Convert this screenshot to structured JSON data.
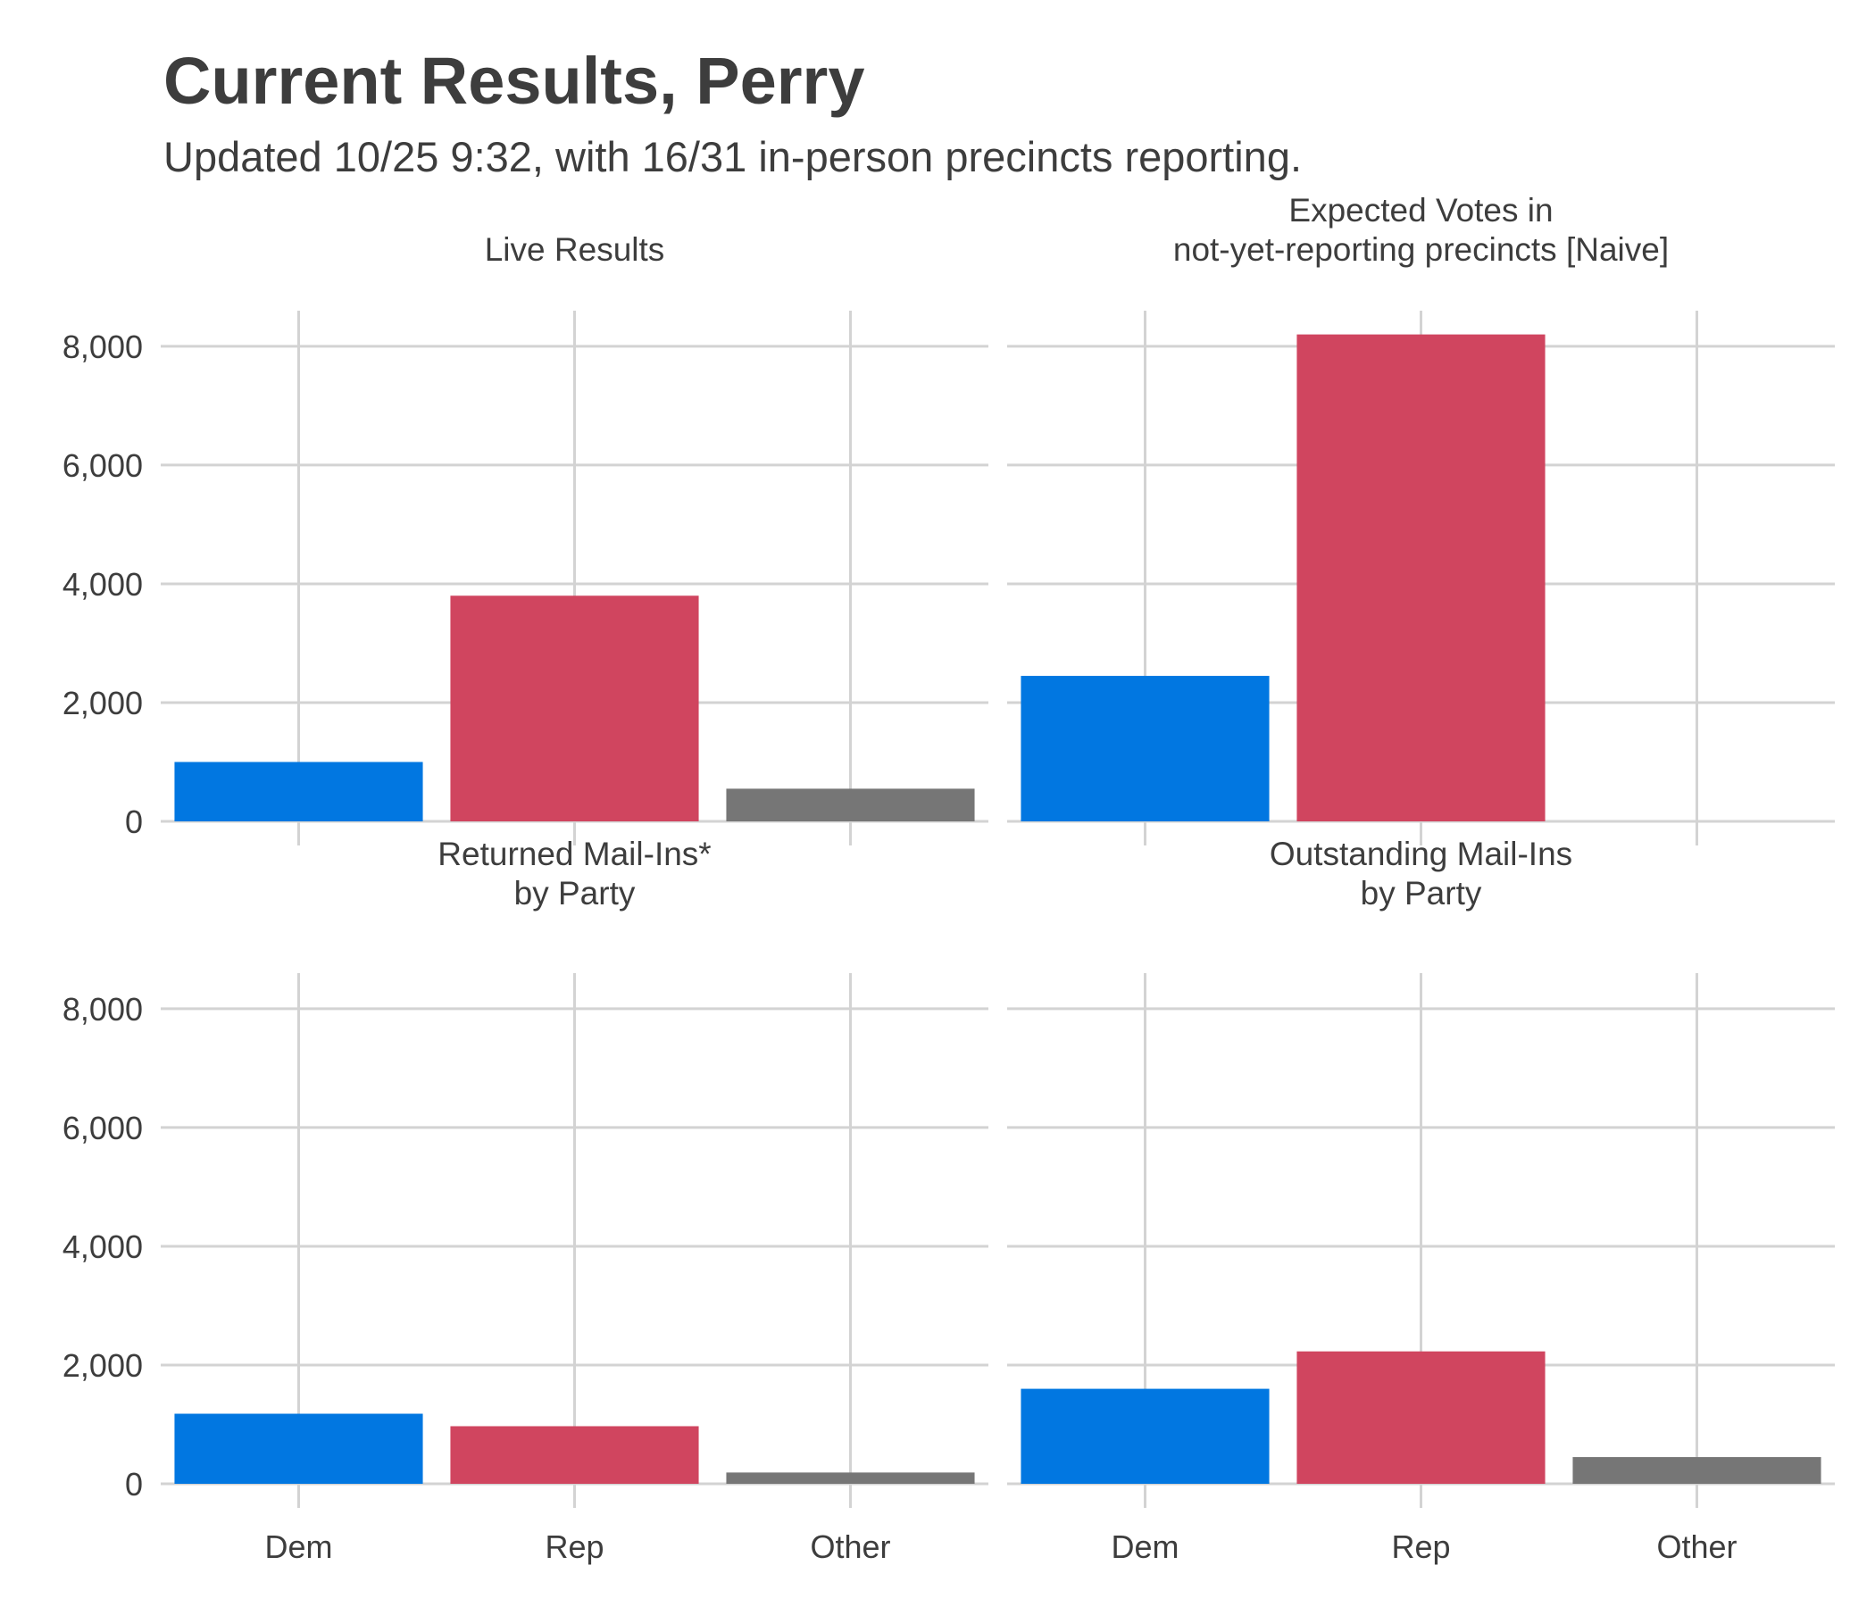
{
  "title": "Current Results, Perry",
  "subtitle": "Updated 10/25 9:32, with 16/31 in-person precincts reporting.",
  "colors": {
    "Dem": "#0177e1",
    "Rep": "#d0455f",
    "Other": "#767676"
  },
  "chart_data": {
    "type": "bar",
    "categories": [
      "Dem",
      "Rep",
      "Other"
    ],
    "ylim": [
      0,
      8600
    ],
    "yticks": [
      0,
      2000,
      4000,
      6000,
      8000
    ],
    "ytick_labels": [
      "0",
      "2,000",
      "4,000",
      "6,000",
      "8,000"
    ],
    "grid": true,
    "panels": [
      {
        "title_lines": [
          "Live Results"
        ],
        "values": [
          1000,
          3800,
          550
        ]
      },
      {
        "title_lines": [
          "Expected Votes in",
          "not-yet-reporting precincts [Naive]"
        ],
        "values": [
          2450,
          8200,
          0
        ]
      },
      {
        "title_lines": [
          "Returned Mail-Ins*",
          "by Party"
        ],
        "values": [
          1180,
          970,
          190
        ]
      },
      {
        "title_lines": [
          "Outstanding Mail-Ins",
          "by Party"
        ],
        "values": [
          1600,
          2230,
          450
        ]
      }
    ]
  }
}
